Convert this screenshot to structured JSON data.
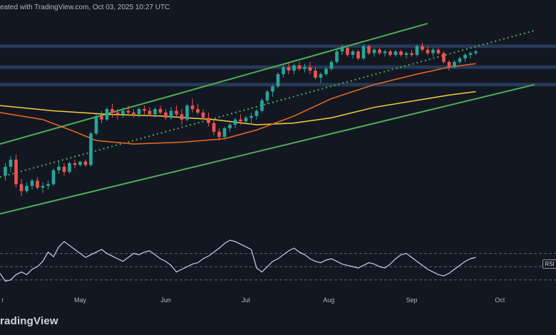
{
  "header": {
    "text": "eated with TradingView.com, Oct 03, 2025 10:27 UTC"
  },
  "brand": {
    "text": "radingView"
  },
  "rsi_label": "RSI",
  "colors": {
    "background": "#131722",
    "bull": "#26a69a",
    "bear": "#ef5350",
    "channel": "#4caf50",
    "ma_slow": "#f5d13a",
    "ma_fast": "#f26a1b",
    "zone": "#2a3d5e",
    "rsi_line": "#c5d2f0",
    "rsi_band": "#5d606b"
  },
  "chart_data": {
    "type": "candlestick",
    "title": "",
    "x_ticks": [
      "r",
      "May",
      "Jun",
      "Jul",
      "Aug",
      "Sep",
      "Oct"
    ],
    "x_tick_positions": [
      0.5,
      15,
      31,
      46,
      61.5,
      77,
      93.5
    ],
    "x_range": [
      0,
      104
    ],
    "y_range": [
      0,
      100
    ],
    "candles": [
      [
        1,
        22,
        29,
        19,
        27
      ],
      [
        2,
        27,
        33,
        24,
        31
      ],
      [
        3,
        31,
        34,
        15,
        17
      ],
      [
        4,
        17,
        20,
        10,
        13
      ],
      [
        5,
        13,
        18,
        12,
        16
      ],
      [
        6,
        16,
        20,
        14,
        19
      ],
      [
        7,
        19,
        21,
        14,
        15
      ],
      [
        8,
        15,
        18,
        12,
        16
      ],
      [
        9,
        16,
        19,
        14,
        17
      ],
      [
        10,
        17,
        26,
        16,
        25
      ],
      [
        11,
        25,
        30,
        23,
        27
      ],
      [
        12,
        27,
        29,
        22,
        24
      ],
      [
        13,
        24,
        30,
        23,
        29
      ],
      [
        14,
        29,
        31,
        26,
        28
      ],
      [
        15,
        28,
        30,
        27,
        30
      ],
      [
        16,
        30,
        31,
        27,
        28
      ],
      [
        17,
        28,
        47,
        27,
        46
      ],
      [
        18,
        46,
        57,
        45,
        56
      ],
      [
        19,
        56,
        59,
        52,
        54
      ],
      [
        20,
        54,
        61,
        53,
        60
      ],
      [
        21,
        60,
        63,
        55,
        58
      ],
      [
        22,
        58,
        60,
        54,
        57
      ],
      [
        23,
        57,
        61,
        55,
        59
      ],
      [
        24,
        59,
        62,
        56,
        58
      ],
      [
        25,
        58,
        60,
        55,
        57
      ],
      [
        26,
        57,
        61,
        55,
        60
      ],
      [
        27,
        60,
        62,
        57,
        59
      ],
      [
        28,
        59,
        61,
        56,
        57
      ],
      [
        29,
        57,
        61,
        55,
        60
      ],
      [
        30,
        60,
        62,
        57,
        58
      ],
      [
        31,
        58,
        60,
        54,
        55
      ],
      [
        32,
        55,
        61,
        54,
        59
      ],
      [
        33,
        59,
        62,
        56,
        57
      ],
      [
        34,
        57,
        60,
        51,
        54
      ],
      [
        35,
        54,
        63,
        53,
        62
      ],
      [
        36,
        62,
        66,
        58,
        60
      ],
      [
        37,
        60,
        63,
        57,
        58
      ],
      [
        38,
        58,
        60,
        54,
        55
      ],
      [
        39,
        55,
        58,
        50,
        52
      ],
      [
        40,
        52,
        54,
        45,
        47
      ],
      [
        41,
        47,
        49,
        42,
        44
      ],
      [
        42,
        44,
        50,
        43,
        49
      ],
      [
        43,
        49,
        52,
        47,
        51
      ],
      [
        44,
        51,
        55,
        49,
        54
      ],
      [
        45,
        54,
        57,
        51,
        53
      ],
      [
        46,
        53,
        56,
        51,
        55
      ],
      [
        47,
        55,
        58,
        52,
        56
      ],
      [
        48,
        56,
        60,
        54,
        59
      ],
      [
        49,
        59,
        66,
        58,
        65
      ],
      [
        50,
        65,
        71,
        63,
        70
      ],
      [
        51,
        70,
        74,
        67,
        73
      ],
      [
        52,
        73,
        81,
        72,
        80
      ],
      [
        53,
        80,
        85,
        78,
        84
      ],
      [
        54,
        84,
        87,
        80,
        82
      ],
      [
        55,
        82,
        86,
        80,
        85
      ],
      [
        56,
        85,
        87,
        82,
        83
      ],
      [
        57,
        83,
        86,
        81,
        84
      ],
      [
        58,
        84,
        87,
        80,
        82
      ],
      [
        59,
        82,
        84,
        77,
        78
      ],
      [
        60,
        78,
        81,
        75,
        80
      ],
      [
        61,
        80,
        84,
        79,
        83
      ],
      [
        62,
        83,
        88,
        82,
        87
      ],
      [
        63,
        87,
        94,
        86,
        93
      ],
      [
        64,
        93,
        97,
        91,
        95
      ],
      [
        65,
        95,
        96,
        90,
        91
      ],
      [
        66,
        91,
        94,
        89,
        93
      ],
      [
        67,
        93,
        94,
        88,
        89
      ],
      [
        68,
        89,
        97,
        88,
        96
      ],
      [
        69,
        96,
        97,
        91,
        92
      ],
      [
        70,
        92,
        95,
        90,
        94
      ],
      [
        71,
        94,
        95,
        91,
        92
      ],
      [
        72,
        92,
        94,
        90,
        93
      ],
      [
        73,
        93,
        94,
        90,
        91
      ],
      [
        74,
        91,
        94,
        90,
        93
      ],
      [
        75,
        93,
        94,
        90,
        91
      ],
      [
        76,
        91,
        93,
        89,
        92
      ],
      [
        77,
        92,
        94,
        90,
        91
      ],
      [
        78,
        91,
        97,
        90,
        96
      ],
      [
        79,
        96,
        98,
        93,
        94
      ],
      [
        80,
        94,
        96,
        91,
        92
      ],
      [
        81,
        92,
        95,
        90,
        94
      ],
      [
        82,
        94,
        95,
        91,
        92
      ],
      [
        83,
        92,
        93,
        86,
        87
      ],
      [
        84,
        87,
        88,
        82,
        84
      ],
      [
        85,
        84,
        88,
        83,
        87
      ],
      [
        86,
        87,
        90,
        86,
        89
      ],
      [
        87,
        89,
        92,
        87,
        91
      ],
      [
        88,
        91,
        93,
        89,
        92
      ],
      [
        89,
        92,
        94,
        91,
        93
      ]
    ],
    "ma_slow": [
      [
        0,
        62
      ],
      [
        10,
        59
      ],
      [
        20,
        57
      ],
      [
        30,
        56
      ],
      [
        40,
        54
      ],
      [
        48,
        51
      ],
      [
        55,
        52
      ],
      [
        62,
        55
      ],
      [
        70,
        61
      ],
      [
        78,
        65
      ],
      [
        84,
        68
      ],
      [
        89,
        70
      ]
    ],
    "ma_fast": [
      [
        0,
        58
      ],
      [
        8,
        54
      ],
      [
        14,
        47
      ],
      [
        18,
        42
      ],
      [
        25,
        40
      ],
      [
        34,
        41
      ],
      [
        42,
        43
      ],
      [
        48,
        48
      ],
      [
        55,
        56
      ],
      [
        62,
        66
      ],
      [
        70,
        74
      ],
      [
        78,
        80
      ],
      [
        84,
        84
      ],
      [
        89,
        86
      ]
    ],
    "channel_upper": [
      [
        0,
        40
      ],
      [
        80,
        109
      ]
    ],
    "channel_lower": [
      [
        0,
        0
      ],
      [
        100,
        74
      ]
    ],
    "channel_mid": [
      [
        0,
        21
      ],
      [
        100,
        105
      ]
    ],
    "zones": [
      [
        95,
        97
      ],
      [
        83,
        85
      ],
      [
        73,
        75
      ]
    ],
    "rsi": {
      "bands": [
        70,
        50,
        30
      ],
      "y_range": [
        20,
        90
      ],
      "values": [
        40,
        28,
        30,
        38,
        42,
        38,
        46,
        50,
        58,
        72,
        65,
        80,
        88,
        82,
        76,
        70,
        64,
        68,
        72,
        76,
        70,
        66,
        62,
        58,
        64,
        70,
        68,
        72,
        74,
        68,
        62,
        58,
        52,
        42,
        46,
        50,
        54,
        56,
        62,
        66,
        72,
        78,
        85,
        90,
        88,
        84,
        80,
        76,
        48,
        42,
        50,
        58,
        62,
        68,
        74,
        78,
        72,
        68,
        62,
        58,
        56,
        60,
        62,
        58,
        54,
        52,
        50,
        48,
        52,
        56,
        54,
        50,
        48,
        54,
        62,
        68,
        70,
        64,
        58,
        52,
        46,
        42,
        38,
        36,
        40,
        46,
        52,
        58,
        62,
        64
      ]
    }
  }
}
